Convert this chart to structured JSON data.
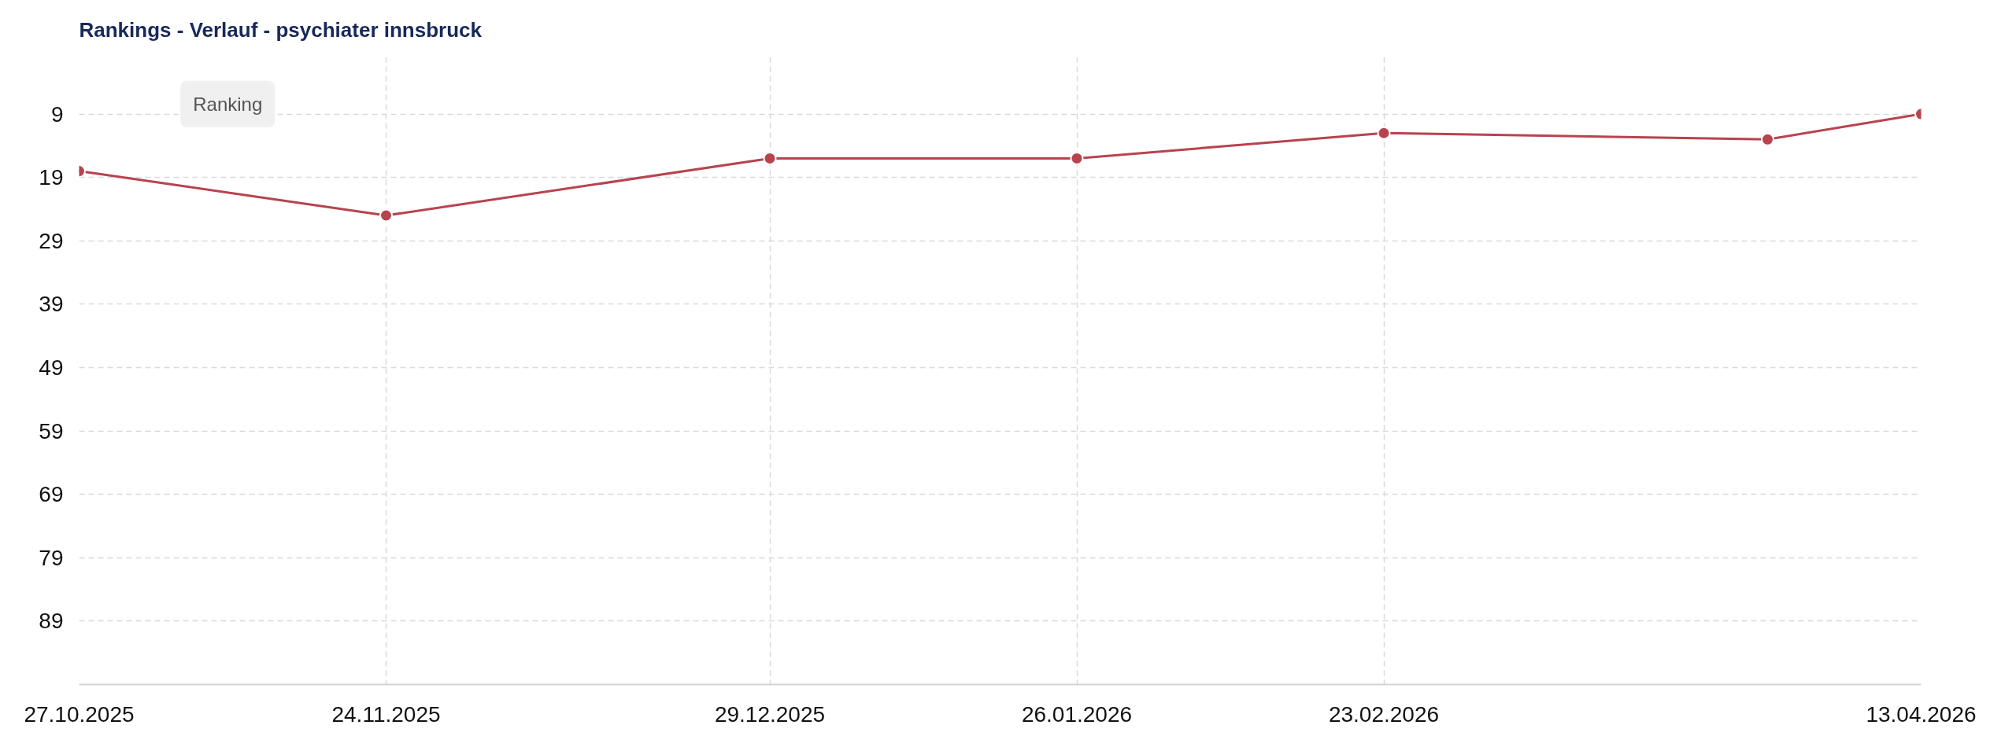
{
  "chart_data": {
    "type": "line",
    "title": "Rankings - Verlauf - psychiater innsbruck",
    "annotations": [
      "Ranking"
    ],
    "x": [
      "2025-10-27",
      "2025-11-24",
      "2025-12-29",
      "2026-01-26",
      "2026-02-23",
      "2026-03-30",
      "2026-04-13"
    ],
    "series": [
      {
        "color": "#b8434f",
        "values": [
          18,
          25,
          16,
          16,
          12,
          13,
          9
        ]
      }
    ],
    "xlim": [
      "2025-10-27",
      "2026-04-13"
    ],
    "xticks": [
      {
        "value": "2025-10-27",
        "label": "27.10.2025"
      },
      {
        "value": "2025-11-24",
        "label": "24.11.2025"
      },
      {
        "value": "2025-12-29",
        "label": "29.12.2025"
      },
      {
        "value": "2026-01-26",
        "label": "26.01.2026"
      },
      {
        "value": "2026-02-23",
        "label": "23.02.2026"
      },
      {
        "value": "2026-04-13",
        "label": "13.04.2026"
      }
    ],
    "ylim": [
      99,
      0
    ],
    "yticks": [
      9,
      19,
      29,
      39,
      49,
      59,
      69,
      79,
      89
    ],
    "grid": true,
    "marker": "circle",
    "line_style": "solid"
  }
}
